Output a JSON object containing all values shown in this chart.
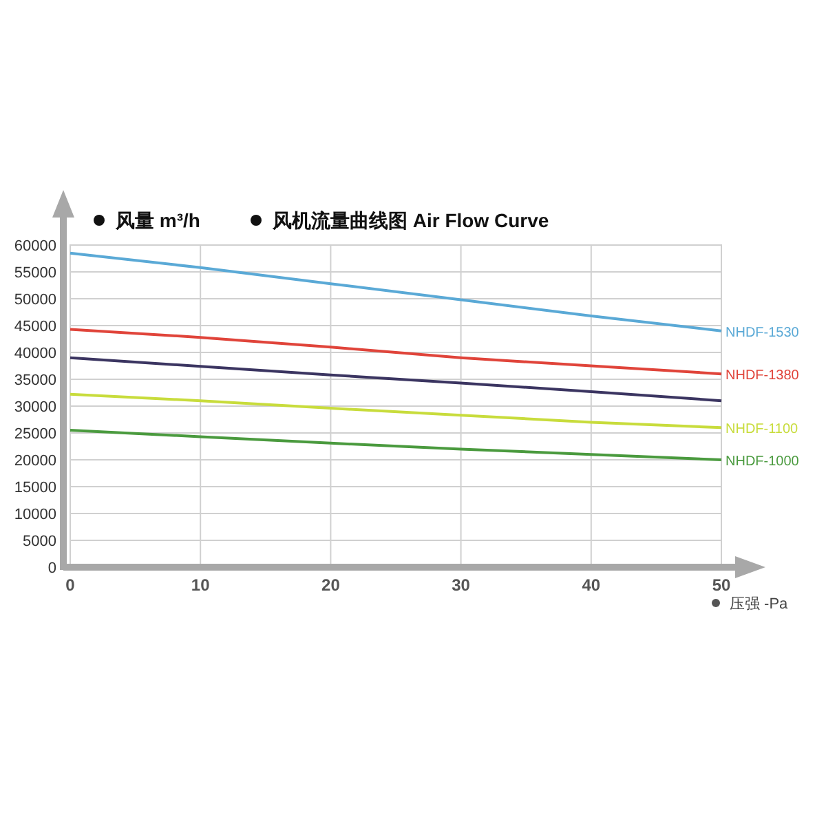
{
  "chart_data": {
    "type": "line",
    "title": "风机流量曲线图 Air Flow Curve",
    "ylabel": "风量 m³/h",
    "xlabel": "压强 -Pa",
    "x": [
      0,
      10,
      20,
      30,
      40,
      50
    ],
    "series": [
      {
        "name": "NHDF-1530",
        "color": "#5aa9d6",
        "values": [
          58500,
          55800,
          52800,
          49800,
          46800,
          44000
        ]
      },
      {
        "name": "NHDF-1380",
        "color": "#e0443a",
        "values": [
          44300,
          42800,
          41000,
          39000,
          37500,
          36000
        ]
      },
      {
        "color": "#3b3561",
        "values": [
          39000,
          37400,
          35800,
          34300,
          32700,
          31000
        ]
      },
      {
        "name": "NHDF-1100",
        "color": "#c8dc3c",
        "values": [
          32200,
          31000,
          29600,
          28300,
          27000,
          26000
        ]
      },
      {
        "name": "NHDF-1000",
        "color": "#4a9a3e",
        "values": [
          25500,
          24300,
          23100,
          22000,
          21000,
          20000
        ]
      }
    ],
    "xlim": [
      0,
      50
    ],
    "xticks": [
      0,
      10,
      20,
      30,
      40,
      50
    ],
    "ylim": [
      0,
      60000
    ],
    "yticks": [
      0,
      5000,
      10000,
      15000,
      20000,
      25000,
      30000,
      35000,
      40000,
      45000,
      50000,
      55000,
      60000
    ],
    "grid": true,
    "legend": "right",
    "marker": "none",
    "line_style": "solid"
  }
}
